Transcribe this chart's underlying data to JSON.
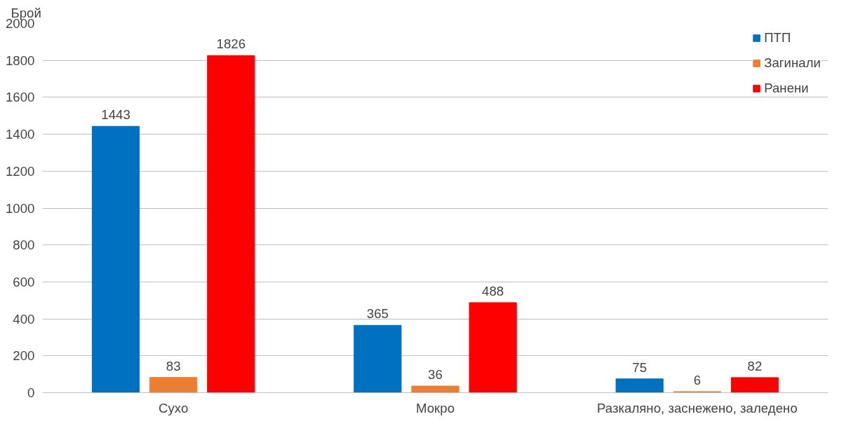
{
  "chart_data": {
    "type": "bar",
    "ylabel": "Брой",
    "categories": [
      "Сухо",
      "Мокро",
      "Разкаляно, заснежено, заледено"
    ],
    "series": [
      {
        "name": "ПТП",
        "color": "#0070c0",
        "values": [
          1443,
          365,
          75
        ]
      },
      {
        "name": "Загинали",
        "color": "#ed7d31",
        "values": [
          83,
          36,
          6
        ]
      },
      {
        "name": "Ранени",
        "color": "#ff0000",
        "values": [
          1826,
          488,
          82
        ]
      }
    ],
    "ylim": [
      0,
      2000
    ],
    "yticks": [
      0,
      200,
      400,
      600,
      800,
      1000,
      1200,
      1400,
      1600,
      1800,
      2000
    ],
    "grid": "y",
    "legend": "top right",
    "data_labels": true
  }
}
